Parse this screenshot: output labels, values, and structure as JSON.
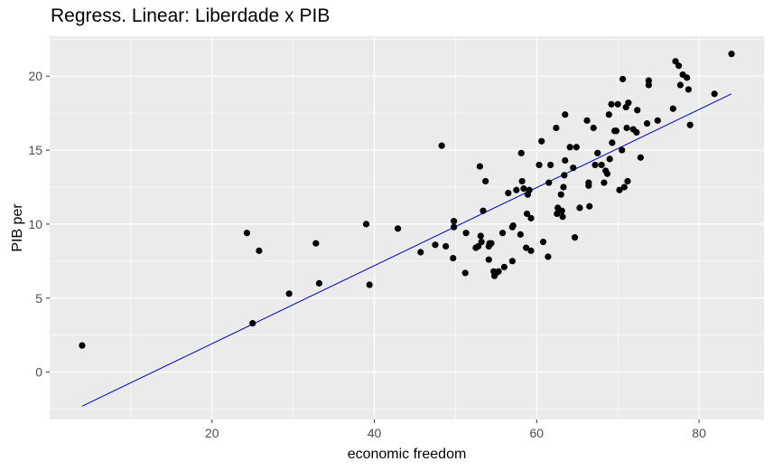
{
  "chart_data": {
    "type": "scatter",
    "title": "Regress. Linear: Liberdade x PIB",
    "xlabel": "economic freedom",
    "ylabel": "PIB per",
    "xlim": [
      0,
      88
    ],
    "ylim": [
      -3.2,
      22.7
    ],
    "x_ticks": [
      20,
      40,
      60,
      80
    ],
    "y_ticks": [
      0,
      5,
      10,
      15,
      20
    ],
    "x_tick_labels": [
      "20",
      "40",
      "60",
      "80"
    ],
    "y_tick_labels": [
      "0",
      "5",
      "10",
      "15",
      "20"
    ],
    "grid": true,
    "colors": {
      "panel": "#ebebeb",
      "grid": "#ffffff",
      "points": "#000000",
      "line": "#0000cc"
    },
    "points": [
      [
        4,
        1.8
      ],
      [
        24.3,
        9.4
      ],
      [
        25,
        3.3
      ],
      [
        25.8,
        8.2
      ],
      [
        29.5,
        5.3
      ],
      [
        32.8,
        8.7
      ],
      [
        33.2,
        6.0
      ],
      [
        39,
        10.0
      ],
      [
        39.4,
        5.9
      ],
      [
        42.9,
        9.7
      ],
      [
        45.7,
        8.1
      ],
      [
        47.5,
        8.6
      ],
      [
        48.3,
        15.3
      ],
      [
        48.8,
        8.5
      ],
      [
        49.7,
        7.7
      ],
      [
        49.8,
        10.2
      ],
      [
        49.8,
        9.8
      ],
      [
        51.2,
        6.7
      ],
      [
        51.3,
        9.4
      ],
      [
        52.5,
        8.4
      ],
      [
        52.8,
        8.5
      ],
      [
        53.0,
        13.9
      ],
      [
        53.1,
        9.2
      ],
      [
        53.2,
        8.8
      ],
      [
        53.4,
        10.9
      ],
      [
        53.7,
        12.9
      ],
      [
        54.1,
        8.5
      ],
      [
        54.1,
        7.6
      ],
      [
        54.2,
        8.7
      ],
      [
        54.4,
        8.7
      ],
      [
        54.7,
        6.8
      ],
      [
        54.8,
        6.5
      ],
      [
        55.0,
        6.7
      ],
      [
        55.3,
        6.8
      ],
      [
        55.8,
        9.4
      ],
      [
        56.0,
        7.1
      ],
      [
        56.5,
        12.1
      ],
      [
        57.0,
        9.8
      ],
      [
        57.1,
        9.9
      ],
      [
        57.0,
        7.5
      ],
      [
        57.5,
        12.3
      ],
      [
        58.0,
        9.3
      ],
      [
        58.1,
        14.8
      ],
      [
        58.2,
        12.9
      ],
      [
        58.4,
        12.4
      ],
      [
        58.7,
        8.4
      ],
      [
        58.8,
        10.7
      ],
      [
        58.9,
        12.0
      ],
      [
        59.1,
        12.3
      ],
      [
        59.3,
        8.2
      ],
      [
        59.3,
        10.4
      ],
      [
        60.3,
        14.0
      ],
      [
        60.6,
        15.6
      ],
      [
        60.8,
        8.8
      ],
      [
        61.4,
        7.8
      ],
      [
        61.5,
        12.8
      ],
      [
        61.7,
        14.0
      ],
      [
        62.5,
        10.7
      ],
      [
        62.4,
        16.5
      ],
      [
        62.6,
        11.1
      ],
      [
        63.0,
        12.0
      ],
      [
        63.1,
        10.9
      ],
      [
        63.2,
        10.5
      ],
      [
        63.3,
        12.5
      ],
      [
        63.4,
        13.3
      ],
      [
        63.5,
        17.4
      ],
      [
        63.5,
        14.3
      ],
      [
        64.1,
        15.2
      ],
      [
        64.5,
        13.8
      ],
      [
        64.7,
        9.1
      ],
      [
        64.9,
        15.2
      ],
      [
        65.3,
        11.1
      ],
      [
        66.2,
        17.0
      ],
      [
        66.4,
        12.6
      ],
      [
        66.4,
        12.8
      ],
      [
        66.5,
        11.2
      ],
      [
        67.0,
        16.5
      ],
      [
        67.2,
        14.0
      ],
      [
        67.5,
        14.8
      ],
      [
        68.0,
        14.0
      ],
      [
        68.3,
        12.8
      ],
      [
        68.5,
        13.6
      ],
      [
        68.7,
        13.4
      ],
      [
        68.9,
        17.4
      ],
      [
        69.0,
        14.4
      ],
      [
        69.2,
        18.1
      ],
      [
        69.3,
        15.5
      ],
      [
        69.6,
        16.3
      ],
      [
        69.8,
        16.3
      ],
      [
        70.0,
        18.1
      ],
      [
        70.2,
        12.3
      ],
      [
        70.5,
        15.0
      ],
      [
        70.6,
        19.8
      ],
      [
        70.8,
        12.5
      ],
      [
        71.0,
        17.9
      ],
      [
        71.1,
        16.5
      ],
      [
        71.2,
        12.9
      ],
      [
        71.3,
        18.2
      ],
      [
        71.9,
        16.4
      ],
      [
        72.3,
        16.2
      ],
      [
        72.4,
        17.7
      ],
      [
        72.8,
        14.5
      ],
      [
        73.6,
        16.8
      ],
      [
        73.8,
        19.4
      ],
      [
        73.8,
        19.7
      ],
      [
        74.9,
        17.0
      ],
      [
        76.8,
        17.8
      ],
      [
        77.1,
        21.0
      ],
      [
        77.5,
        20.7
      ],
      [
        77.7,
        19.4
      ],
      [
        78.0,
        20.1
      ],
      [
        78.5,
        19.9
      ],
      [
        78.7,
        19.1
      ],
      [
        78.9,
        16.7
      ],
      [
        81.9,
        18.8
      ],
      [
        84.0,
        21.5
      ]
    ],
    "fit_line": {
      "x": [
        4,
        84
      ],
      "y": [
        -2.3,
        18.8
      ]
    }
  }
}
